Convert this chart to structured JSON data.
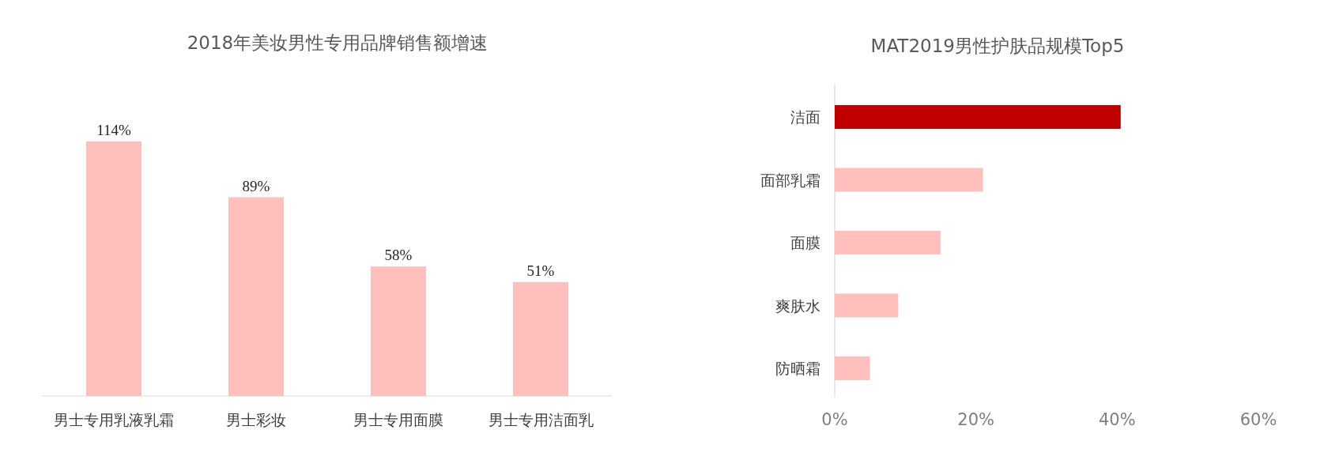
{
  "chart_data": [
    {
      "type": "bar",
      "title": "2018年美妆男性专用品牌销售额增速",
      "categories": [
        "男士专用乳液乳霜",
        "男士彩妆",
        "男士专用面膜",
        "男士专用洁面乳"
      ],
      "values": [
        114,
        89,
        58,
        51
      ],
      "value_labels": [
        "114%",
        "89%",
        "58%",
        "51%"
      ],
      "color": "#ffbfbd"
    },
    {
      "type": "bar",
      "orientation": "horizontal",
      "title": "MAT2019男性护肤品规模Top5",
      "categories": [
        "洁面",
        "面部乳霜",
        "面膜",
        "爽肤水",
        "防晒霜"
      ],
      "values": [
        40.5,
        21,
        15,
        9,
        5
      ],
      "colors": [
        "#c00000",
        "#ffbfbd",
        "#ffbfbd",
        "#ffbfbd",
        "#ffbfbd"
      ],
      "xlim": [
        0,
        60
      ],
      "xticks": [
        {
          "value": 0,
          "label": "0%"
        },
        {
          "value": 20,
          "label": "20%"
        },
        {
          "value": 40,
          "label": "40%"
        },
        {
          "value": 60,
          "label": "60%"
        }
      ]
    }
  ]
}
